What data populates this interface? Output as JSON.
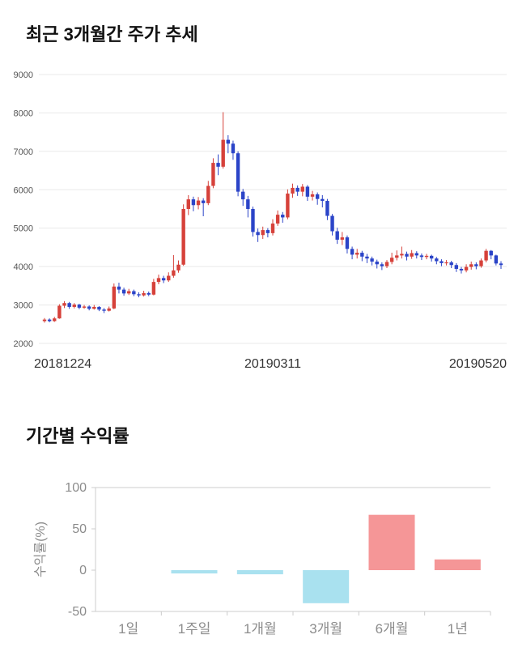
{
  "price_section": {
    "title": "최근 3개월간 주가 추세",
    "chart_data": {
      "type": "candlestick",
      "title": "최근 3개월간 주가 추세",
      "ylim": [
        2000,
        9000
      ],
      "yticks": [
        2000,
        3000,
        4000,
        5000,
        6000,
        7000,
        8000,
        9000
      ],
      "xticks": [
        "20181224",
        "20190311",
        "20190520"
      ],
      "up_color": "#d6413a",
      "down_color": "#2b44c8",
      "grid_color": "#e9e9e9",
      "tick_color": "#555555",
      "xtick_color": "#333333",
      "candles_format": [
        "open",
        "close",
        "low",
        "high"
      ],
      "candles": [
        [
          2580,
          2620,
          2540,
          2660
        ],
        [
          2620,
          2580,
          2550,
          2650
        ],
        [
          2580,
          2650,
          2560,
          2690
        ],
        [
          2650,
          2980,
          2640,
          3020
        ],
        [
          2980,
          3050,
          2920,
          3100
        ],
        [
          3050,
          2950,
          2900,
          3080
        ],
        [
          2950,
          3010,
          2910,
          3050
        ],
        [
          3010,
          2930,
          2890,
          3030
        ],
        [
          2930,
          2960,
          2900,
          3000
        ],
        [
          2960,
          2900,
          2860,
          2990
        ],
        [
          2900,
          2950,
          2880,
          3000
        ],
        [
          2950,
          2880,
          2840,
          2970
        ],
        [
          2880,
          2850,
          2790,
          2920
        ],
        [
          2850,
          2910,
          2830,
          2960
        ],
        [
          2910,
          3480,
          2890,
          3560
        ],
        [
          3480,
          3400,
          3300,
          3580
        ],
        [
          3400,
          3300,
          3240,
          3450
        ],
        [
          3300,
          3360,
          3260,
          3420
        ],
        [
          3360,
          3280,
          3230,
          3400
        ],
        [
          3280,
          3250,
          3200,
          3330
        ],
        [
          3250,
          3310,
          3220,
          3370
        ],
        [
          3310,
          3270,
          3230,
          3350
        ],
        [
          3270,
          3600,
          3250,
          3680
        ],
        [
          3600,
          3700,
          3540,
          3790
        ],
        [
          3700,
          3640,
          3570,
          3760
        ],
        [
          3640,
          3760,
          3600,
          3850
        ],
        [
          3760,
          3900,
          3710,
          4300
        ],
        [
          3900,
          4050,
          3840,
          4160
        ],
        [
          4050,
          5500,
          4020,
          5620
        ],
        [
          5500,
          5750,
          5340,
          5860
        ],
        [
          5750,
          5600,
          5440,
          5820
        ],
        [
          5600,
          5720,
          5490,
          5810
        ],
        [
          5720,
          5650,
          5310,
          5780
        ],
        [
          5650,
          6100,
          5600,
          6230
        ],
        [
          6100,
          6700,
          6040,
          6820
        ],
        [
          6700,
          6600,
          6380,
          6920
        ],
        [
          6600,
          7300,
          6550,
          8020
        ],
        [
          7300,
          7200,
          6950,
          7420
        ],
        [
          7200,
          6950,
          6780,
          7280
        ],
        [
          6950,
          5950,
          5830,
          7000
        ],
        [
          5950,
          5750,
          5580,
          6020
        ],
        [
          5750,
          5500,
          5280,
          5840
        ],
        [
          5500,
          4900,
          4780,
          5560
        ],
        [
          4900,
          4820,
          4640,
          4990
        ],
        [
          4820,
          4950,
          4720,
          5040
        ],
        [
          4950,
          4870,
          4760,
          5000
        ],
        [
          4870,
          5120,
          4810,
          5230
        ],
        [
          5120,
          5350,
          5060,
          5460
        ],
        [
          5350,
          5280,
          5140,
          5420
        ],
        [
          5280,
          5900,
          5230,
          6010
        ],
        [
          5900,
          6050,
          5790,
          6160
        ],
        [
          6050,
          5950,
          5840,
          6110
        ],
        [
          5950,
          6080,
          5830,
          6150
        ],
        [
          6080,
          5820,
          5710,
          6120
        ],
        [
          5820,
          5880,
          5720,
          5970
        ],
        [
          5880,
          5760,
          5610,
          5930
        ],
        [
          5760,
          5710,
          5540,
          5860
        ],
        [
          5710,
          5320,
          5210,
          5760
        ],
        [
          5320,
          4920,
          4810,
          5370
        ],
        [
          4920,
          4700,
          4590,
          5010
        ],
        [
          4700,
          4760,
          4560,
          4900
        ],
        [
          4760,
          4460,
          4340,
          4810
        ],
        [
          4460,
          4310,
          4190,
          4520
        ],
        [
          4310,
          4360,
          4210,
          4460
        ],
        [
          4360,
          4260,
          4140,
          4410
        ],
        [
          4260,
          4210,
          4090,
          4330
        ],
        [
          4210,
          4130,
          4030,
          4260
        ],
        [
          4130,
          4060,
          3950,
          4180
        ],
        [
          4060,
          4010,
          3910,
          4110
        ],
        [
          4010,
          4120,
          3960,
          4170
        ],
        [
          4120,
          4230,
          4060,
          4360
        ],
        [
          4230,
          4290,
          4160,
          4420
        ],
        [
          4290,
          4330,
          4210,
          4520
        ],
        [
          4330,
          4260,
          4160,
          4390
        ],
        [
          4260,
          4350,
          4200,
          4430
        ],
        [
          4350,
          4290,
          4210,
          4400
        ],
        [
          4290,
          4250,
          4170,
          4340
        ],
        [
          4250,
          4280,
          4190,
          4330
        ],
        [
          4280,
          4210,
          4130,
          4310
        ],
        [
          4210,
          4140,
          4060,
          4250
        ],
        [
          4140,
          4090,
          4010,
          4190
        ],
        [
          4090,
          4110,
          4030,
          4170
        ],
        [
          4110,
          4040,
          3960,
          4150
        ],
        [
          4040,
          3940,
          3860,
          4090
        ],
        [
          3940,
          3900,
          3820,
          3990
        ],
        [
          3900,
          3990,
          3850,
          4060
        ],
        [
          3990,
          4060,
          3920,
          4130
        ],
        [
          4060,
          4010,
          3930,
          4110
        ],
        [
          4010,
          4160,
          3970,
          4210
        ],
        [
          4160,
          4410,
          4110,
          4460
        ],
        [
          4410,
          4290,
          4190,
          4430
        ],
        [
          4290,
          4080,
          4030,
          4310
        ],
        [
          4080,
          4040,
          3940,
          4140
        ]
      ]
    }
  },
  "returns_section": {
    "title": "기간별 수익률",
    "chart_data": {
      "type": "bar",
      "categories": [
        "1일",
        "1주일",
        "1개월",
        "3개월",
        "6개월",
        "1년"
      ],
      "values": [
        0,
        -4,
        -5,
        -40,
        67,
        13
      ],
      "ylabel": "수익률(%)",
      "ylim": [
        -50,
        100
      ],
      "yticks": [
        100,
        50,
        0,
        -50
      ],
      "positive_color": "#f59697",
      "negative_color": "#a9e1ef",
      "axis_color": "#cccccc",
      "label_color": "#8c8c8c"
    }
  }
}
